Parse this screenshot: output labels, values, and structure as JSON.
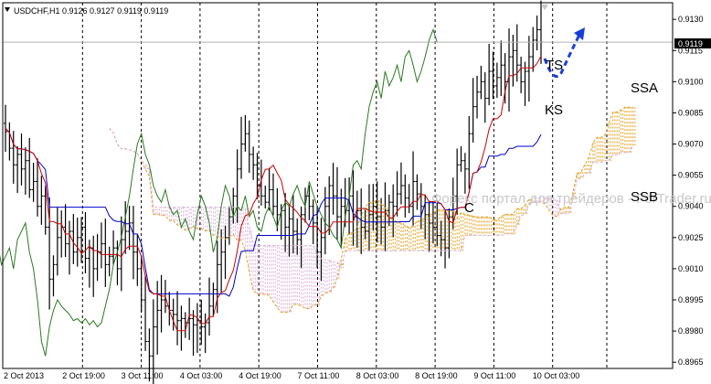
{
  "header": {
    "title": "USDCHF,H1  0.9126 0.9127 0.9119 0.9119",
    "arrow_icon": "triangle-down-icon"
  },
  "watermark": "Форекс портал для трейдеров - ForTrader.ru",
  "chart_data": {
    "type": "line",
    "symbol": "USDCHF",
    "timeframe": "H1",
    "ohlc_header": {
      "open": 0.9126,
      "high": 0.9127,
      "low": 0.9119,
      "close": 0.9119
    },
    "ylim": [
      0.8962,
      0.9138
    ],
    "y_ticks": [
      "0.9130",
      "0.9115",
      "0.9100",
      "0.9085",
      "0.9070",
      "0.9055",
      "0.9040",
      "0.9025",
      "0.9010",
      "0.8995",
      "0.8980",
      "0.8965"
    ],
    "current_price_label": "0.9119",
    "x_ticks": [
      "2 Oct 2013",
      "2 Oct 19:00",
      "3 Oct 11:00",
      "4 Oct 03:00",
      "4 Oct 19:00",
      "7 Oct 11:00",
      "8 Oct 03:00",
      "8 Oct 19:00",
      "9 Oct 11:00",
      "10 Oct 03:00"
    ],
    "labels": {
      "ts": "TS",
      "ks": "KS",
      "ssa": "SSA",
      "ssb": "SSB",
      "c": "C"
    },
    "colors": {
      "candles": "#000000",
      "tenkan": "#cc0000",
      "kijun": "#0000cc",
      "chikou": "#2a7a1f",
      "senkou_a": "#e0a020",
      "senkou_b": "#d8b0d8",
      "forecast": "#1a3fd8",
      "grid": "#000000",
      "price_line": "#b0b0b0"
    },
    "closes": [
      0.9076,
      0.9068,
      0.906,
      0.9065,
      0.9058,
      0.9062,
      0.9048,
      0.9052,
      0.904,
      0.9045,
      0.903,
      0.9005,
      0.9012,
      0.9025,
      0.903,
      0.9022,
      0.9028,
      0.9018,
      0.9025,
      0.903,
      0.9015,
      0.902,
      0.901,
      0.9018,
      0.9022,
      0.9012,
      0.9016,
      0.902,
      0.901,
      0.9024,
      0.9028,
      0.9032,
      0.9018,
      0.901,
      0.8995,
      0.8975,
      0.8968,
      0.8982,
      0.899,
      0.8995,
      0.8992,
      0.899,
      0.8988,
      0.8985,
      0.8986,
      0.8984,
      0.8986,
      0.8983,
      0.8985,
      0.8982,
      0.8984,
      0.8992,
      0.9,
      0.9012,
      0.9018,
      0.9025,
      0.9035,
      0.9045,
      0.9058,
      0.907,
      0.9075,
      0.9065,
      0.906,
      0.905,
      0.9045,
      0.9042,
      0.9048,
      0.904,
      0.9036,
      0.9038,
      0.903,
      0.9034,
      0.9028,
      0.9024,
      0.9036,
      0.9045,
      0.904,
      0.9032,
      0.9018,
      0.9025,
      0.904,
      0.905,
      0.9045,
      0.9035,
      0.904,
      0.9038,
      0.9045,
      0.9035,
      0.9038,
      0.903,
      0.9028,
      0.9036,
      0.904,
      0.9035,
      0.903,
      0.9038,
      0.9042,
      0.904,
      0.9046,
      0.905,
      0.9044,
      0.904,
      0.9052,
      0.9046,
      0.904,
      0.9036,
      0.9032,
      0.903,
      0.9026,
      0.9024,
      0.902,
      0.9035,
      0.9045,
      0.906,
      0.9062,
      0.9058,
      0.9075,
      0.9088,
      0.9095,
      0.91,
      0.9092,
      0.9105,
      0.9098,
      0.9102,
      0.9108,
      0.91,
      0.9112,
      0.9115,
      0.9108,
      0.91,
      0.9105,
      0.9112,
      0.912,
      0.9125,
      0.9119
    ]
  }
}
